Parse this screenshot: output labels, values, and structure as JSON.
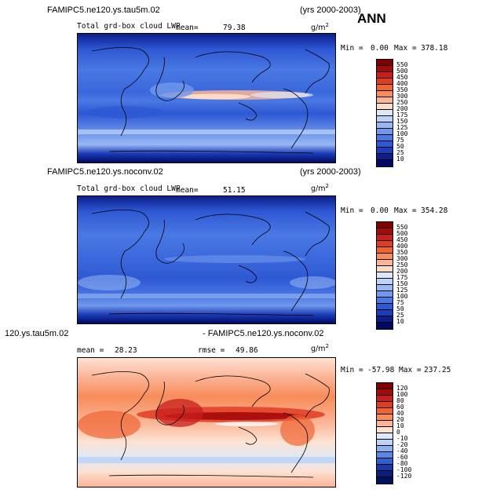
{
  "season": "ANN",
  "units": "g/m",
  "units_sup": "2",
  "panels": [
    {
      "case_title": "FAMIPC5.ne120.ys.tau5m.02",
      "years": "(yrs 2000-2003)",
      "field": "Total grd-box cloud LWP",
      "mean_label": "mean=",
      "mean_value": "79.38",
      "min_label": "Min =",
      "min_value": "0.00",
      "max_label": "Max =",
      "max_value": "378.18",
      "colorbar": {
        "levels": [
          "550",
          "500",
          "450",
          "400",
          "350",
          "300",
          "250",
          "200",
          "175",
          "150",
          "125",
          "100",
          "75",
          "50",
          "25",
          "10"
        ],
        "colors": [
          "#7f0000",
          "#a50a0a",
          "#c81e1e",
          "#e03c24",
          "#f06432",
          "#f88c5a",
          "#fbb496",
          "#fcdcc8",
          "#dce8f8",
          "#bcd2f8",
          "#98b8f4",
          "#7098ec",
          "#4a78e4",
          "#2e58d4",
          "#1c3cb8",
          "#0c1e8c",
          "#000a64"
        ]
      }
    },
    {
      "case_title": "FAMIPC5.ne120.ys.noconv.02",
      "years": "(yrs 2000-2003)",
      "field": "Total grd-box cloud LWP",
      "mean_label": "mean=",
      "mean_value": "51.15",
      "min_label": "Min =",
      "min_value": "0.00",
      "max_label": "Max =",
      "max_value": "354.28",
      "colorbar": {
        "levels": [
          "550",
          "500",
          "450",
          "400",
          "350",
          "300",
          "250",
          "200",
          "175",
          "150",
          "125",
          "100",
          "75",
          "50",
          "25",
          "10"
        ],
        "colors": [
          "#7f0000",
          "#a50a0a",
          "#c81e1e",
          "#e03c24",
          "#f06432",
          "#f88c5a",
          "#fbb496",
          "#fcdcc8",
          "#dce8f8",
          "#bcd2f8",
          "#98b8f4",
          "#7098ec",
          "#4a78e4",
          "#2e58d4",
          "#1c3cb8",
          "#0c1e8c",
          "#000a64"
        ]
      }
    },
    {
      "case_title_left": "120.ys.tau5m.02",
      "case_title_right": "- FAMIPC5.ne120.ys.noconv.02",
      "mean_label": "mean =",
      "mean_value": "28.23",
      "rmse_label": "rmse =",
      "rmse_value": "49.86",
      "min_label": "Min =",
      "min_value": "-57.98",
      "max_label": "Max =",
      "max_value": "237.25",
      "colorbar": {
        "levels": [
          "120",
          "100",
          "80",
          "60",
          "40",
          "20",
          "10",
          "0",
          "-10",
          "-20",
          "-40",
          "-60",
          "-80",
          "-100",
          "-120"
        ],
        "colors": [
          "#7f0000",
          "#a50a0a",
          "#c81e1e",
          "#e03c24",
          "#f06432",
          "#f88c5a",
          "#fbb496",
          "#fde2d2",
          "#dce8f8",
          "#bcd2f8",
          "#8cb0f0",
          "#5a86e4",
          "#3060d0",
          "#1838a8",
          "#08207c",
          "#00105a"
        ]
      }
    }
  ]
}
